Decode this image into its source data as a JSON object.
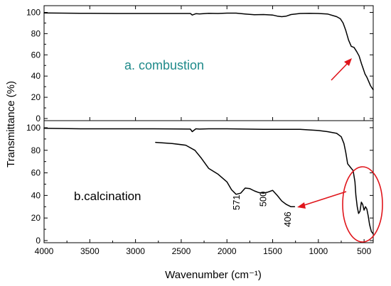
{
  "chart_data": {
    "type": "line",
    "xlabel": "Wavenumber (cm⁻¹)",
    "ylabel": "Transmittance (%)",
    "xlim": [
      4000,
      400
    ],
    "x_ticks": [
      "4000",
      "3500",
      "3000",
      "2500",
      "2000",
      "1500",
      "1000",
      "500"
    ],
    "panels": [
      {
        "label": "a. combustion",
        "ylim": [
          0,
          105
        ],
        "y_ticks": [
          "0",
          "20",
          "40",
          "60",
          "80",
          "100"
        ],
        "series": [
          {
            "x": [
              4000,
              3600,
              3200,
              2800,
              2400,
              2380,
              2340,
              2300,
              2200,
              2100,
              2000,
              1900,
              1800,
              1700,
              1600,
              1500,
              1450,
              1400,
              1350,
              1300,
              1200,
              1100,
              1000,
              900,
              800,
              760,
              730,
              700,
              670,
              640,
              610,
              580,
              555,
              530,
              510,
              490,
              470,
              450,
              430,
              400
            ],
            "y": [
              99.5,
              99.2,
              99.0,
              99.0,
              99.0,
              97.5,
              98.8,
              98.6,
              99.2,
              99.0,
              99.3,
              99.3,
              98.5,
              97.8,
              98.0,
              97.5,
              96.5,
              96.0,
              96.5,
              98.0,
              99.0,
              99.2,
              99.0,
              98.5,
              96.0,
              94.0,
              90.0,
              83.0,
              74.0,
              68.0,
              67.0,
              63.0,
              59.0,
              52.0,
              47.0,
              42.0,
              39.0,
              35.0,
              31.0,
              27.0
            ]
          }
        ]
      },
      {
        "label": "b.calcination",
        "ylim": [
          0,
          105
        ],
        "y_ticks": [
          "0",
          "20",
          "40",
          "60",
          "80",
          "100"
        ],
        "series": [
          {
            "x": [
              4000,
              3600,
              3200,
              2800,
              2400,
              2380,
              2340,
              2300,
              2200,
              2000,
              1800,
              1600,
              1400,
              1200,
              1000,
              900,
              800,
              750,
              720,
              700,
              680,
              660,
              640,
              620,
              600,
              590,
              575,
              560,
              545,
              530,
              515,
              500,
              485,
              470,
              455,
              440,
              420,
              400
            ],
            "y": [
              99.5,
              99.0,
              99.0,
              99.0,
              98.8,
              96.5,
              99.0,
              98.8,
              99.0,
              99.0,
              98.8,
              98.5,
              98.5,
              98.5,
              97.5,
              96.5,
              95.0,
              92.0,
              86.0,
              78.0,
              68.0,
              66.0,
              64.0,
              62.0,
              52.0,
              40.0,
              30.0,
              24.0,
              26.0,
              34.0,
              32.0,
              27.0,
              30.0,
              28.0,
              22.0,
              14.0,
              8.0,
              6.0
            ]
          },
          {
            "x": [
              2780,
              2600,
              2450,
              2350,
              2280,
              2200,
              2100,
              2000,
              1950,
              1900,
              1850,
              1800,
              1750,
              1700,
              1650,
              1600,
              1550,
              1500,
              1450,
              1400,
              1350,
              1300,
              1260
            ],
            "y": [
              87.0,
              86.0,
              84.5,
              80.0,
              73.0,
              64.0,
              59.0,
              52.0,
              45.0,
              41.0,
              42.0,
              46.5,
              46.0,
              44.0,
              42.5,
              42.0,
              43.0,
              44.5,
              40.0,
              35.0,
              32.0,
              30.0,
              30.0
            ]
          }
        ],
        "peak_labels": [
          {
            "text": "571",
            "x": 1860,
            "y": 27
          },
          {
            "text": "500",
            "x": 1570,
            "y": 30
          },
          {
            "text": "406",
            "x": 1300,
            "y": 12
          }
        ]
      }
    ]
  }
}
